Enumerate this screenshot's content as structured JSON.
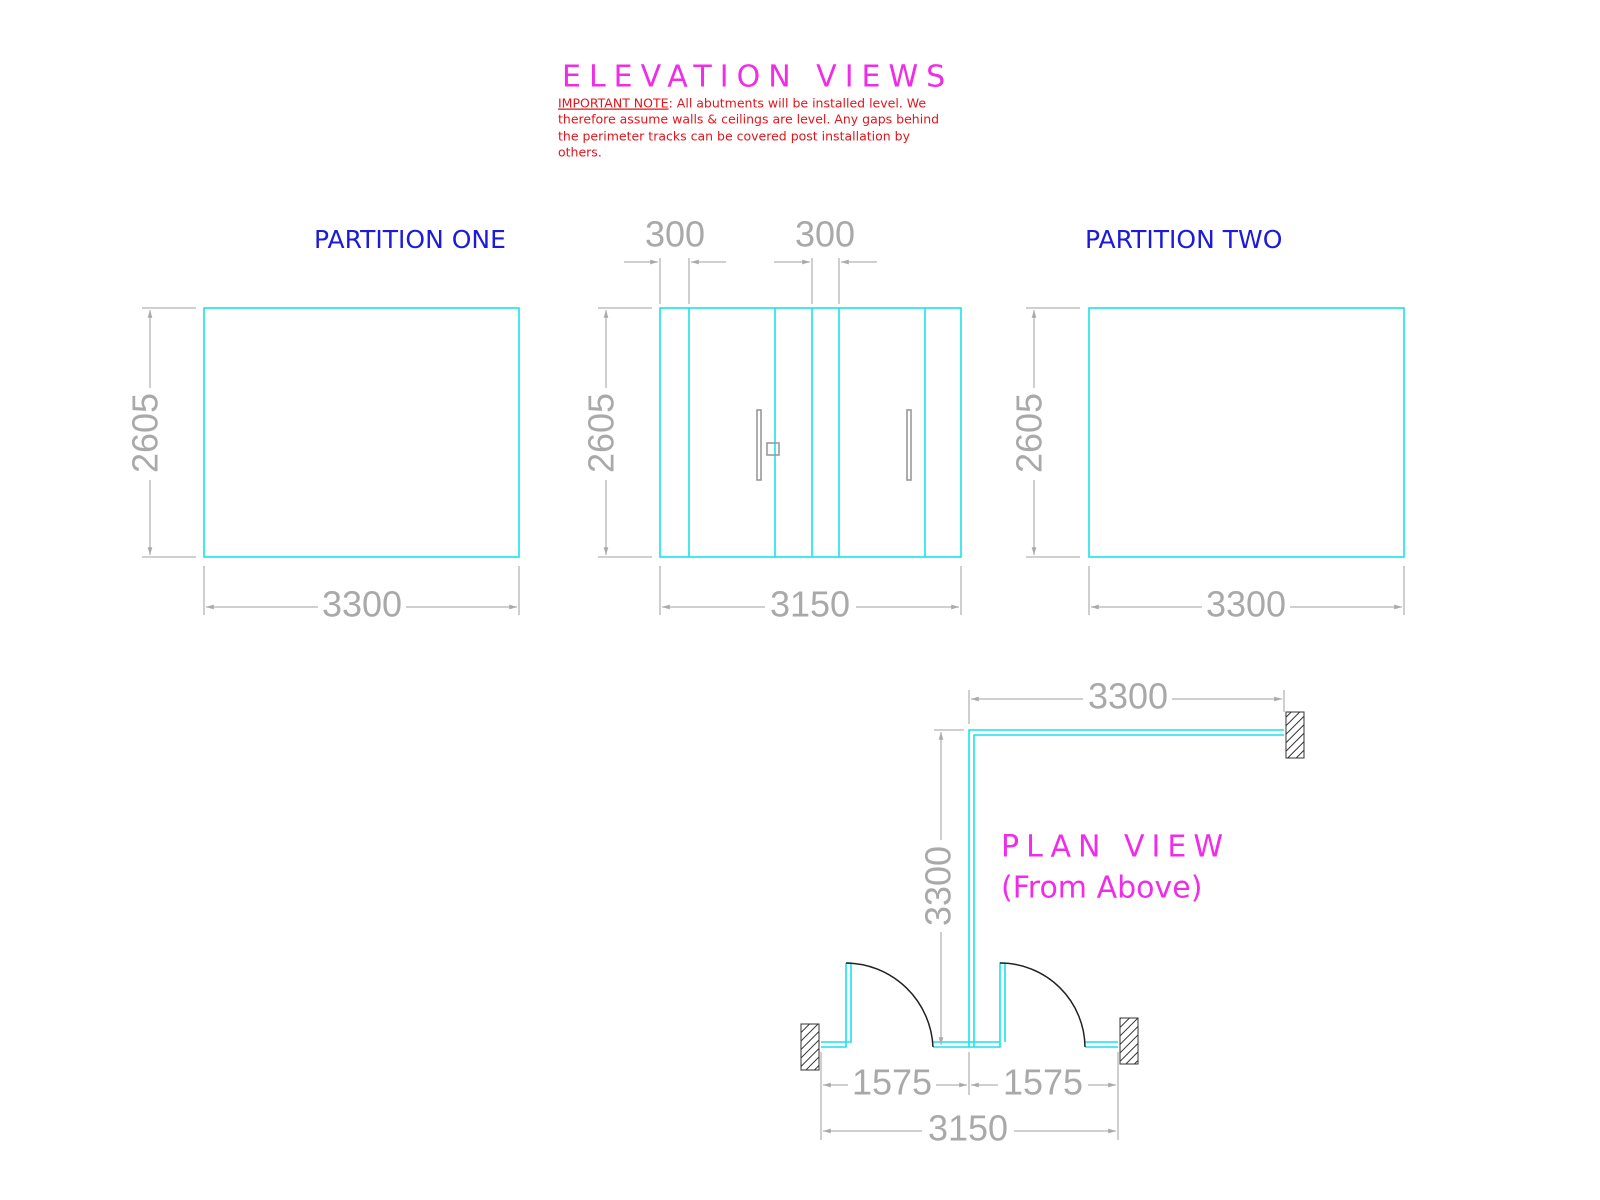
{
  "header": {
    "title": "ELEVATION VIEWS",
    "note_label": "IMPORTANT NOTE",
    "note_lines": [
      ": All abutments will be installed level. We",
      "therefore assume walls & ceilings are level. Any gaps behind",
      "the perimeter tracks can be covered post installation by",
      "others."
    ]
  },
  "elevations": [
    {
      "label": "PARTITION ONE",
      "height": "2605",
      "width": "3300"
    },
    {
      "height": "2605",
      "width": "3150",
      "panel_widths": [
        "300",
        "300"
      ]
    },
    {
      "label": "PARTITION TWO",
      "height": "2605",
      "width": "3300"
    }
  ],
  "plan": {
    "title": "PLAN VIEW",
    "subtitle": "(From Above)",
    "top_width": "3300",
    "side_depth": "3300",
    "left_door": "1575",
    "right_door": "1575",
    "total_width": "3150"
  }
}
